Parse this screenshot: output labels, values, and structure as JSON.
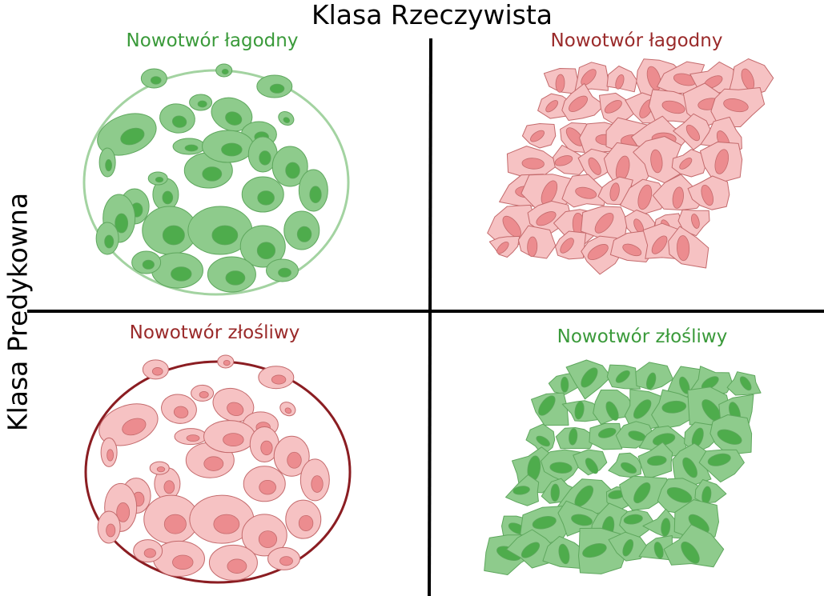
{
  "titles": {
    "x_axis": "Klasa Rzeczywista",
    "y_axis": "Klasa Predykowna"
  },
  "quadrants": {
    "top_left": {
      "label": "Nowotwór łagodny",
      "color": "#3a9a3a"
    },
    "top_right": {
      "label": "Nowotwór łagodny",
      "color": "#9a2a2a"
    },
    "bottom_left": {
      "label": "Nowotwór złośliwy",
      "color": "#9a2a2a"
    },
    "bottom_right": {
      "label": "Nowotwór złośliwy",
      "color": "#3a9a3a"
    }
  },
  "palette": {
    "green_fill": "#8ecb8c",
    "green_stroke": "#5ea75d",
    "green_nucleus": "#4eac4c",
    "green_border": "#a3d3a1",
    "red_fill": "#f6c2c3",
    "red_stroke": "#c46a6c",
    "red_nucleus": "#ec8c8f",
    "red_border": "#8b1d22",
    "axis": "#000000"
  }
}
